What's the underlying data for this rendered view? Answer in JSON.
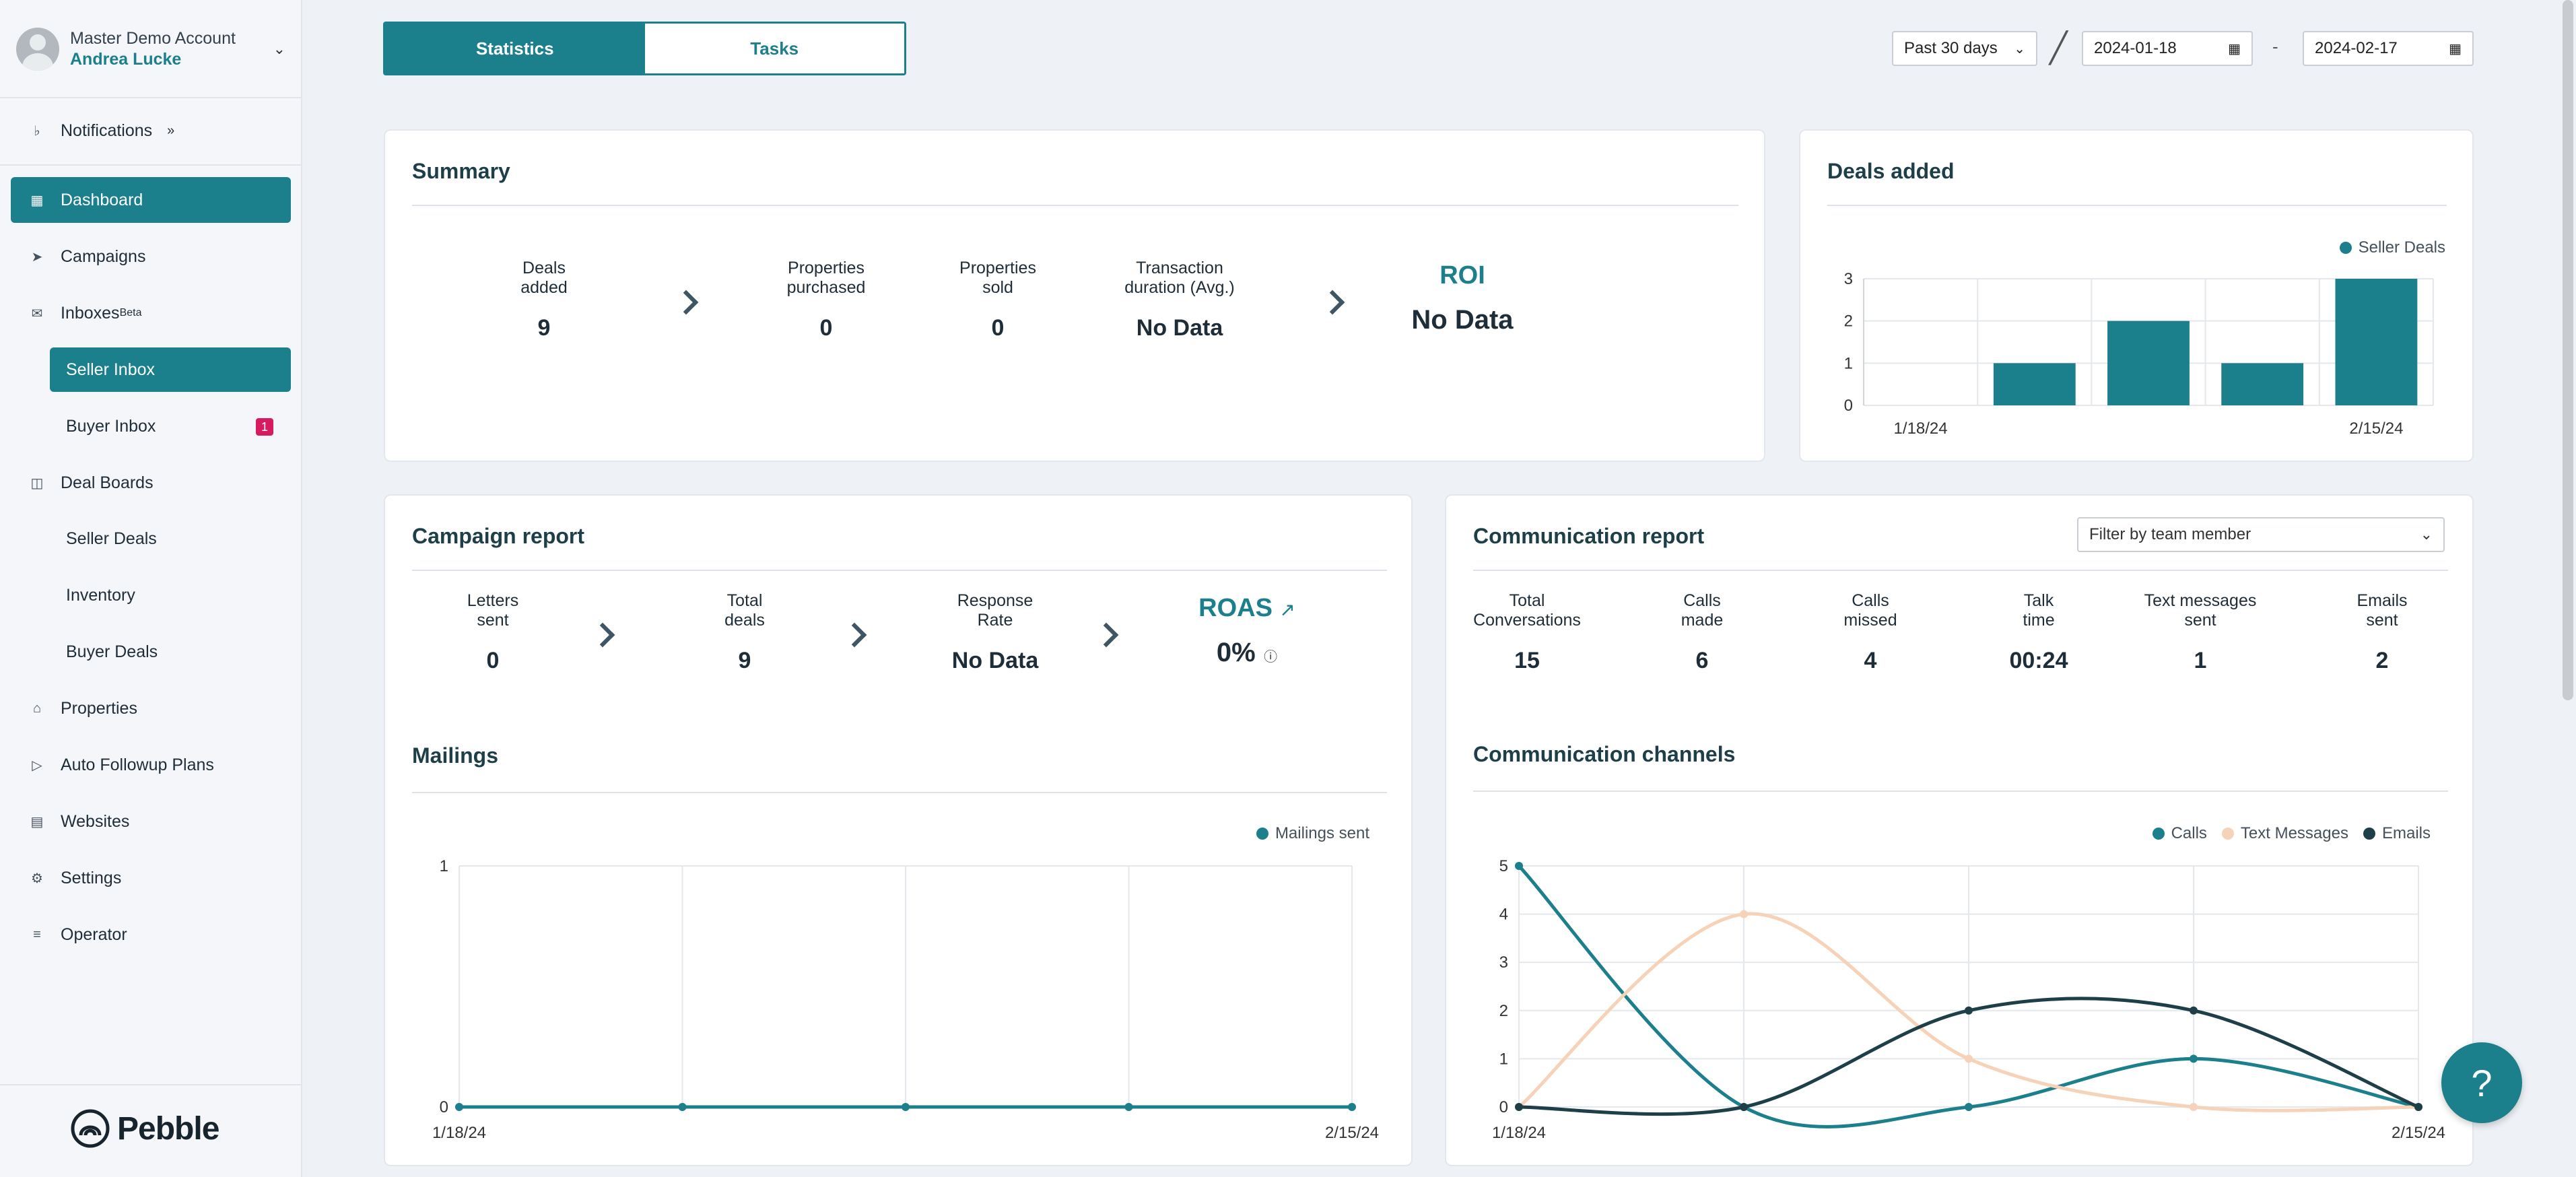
{
  "account": {
    "name": "Master Demo Account",
    "user": "Andrea Lucke"
  },
  "sidebar": {
    "notifications": "Notifications",
    "dashboard": "Dashboard",
    "campaigns": "Campaigns",
    "inboxes": "Inboxes",
    "inboxes_badge": "Beta",
    "seller_inbox": "Seller Inbox",
    "buyer_inbox": "Buyer Inbox",
    "buyer_inbox_count": "1",
    "deal_boards": "Deal Boards",
    "seller_deals": "Seller Deals",
    "inventory": "Inventory",
    "buyer_deals": "Buyer Deals",
    "properties": "Properties",
    "auto_followup": "Auto Followup Plans",
    "websites": "Websites",
    "settings": "Settings",
    "operator": "Operator"
  },
  "brand": {
    "name": "Pebble"
  },
  "tabs": {
    "statistics": "Statistics",
    "tasks": "Tasks"
  },
  "date_filter": {
    "range": "Past 30 days",
    "start": "2024-01-18",
    "end": "2024-02-17",
    "separator": "-"
  },
  "summary": {
    "title": "Summary",
    "deals_added_label": [
      "Deals",
      "added"
    ],
    "deals_added": "9",
    "props_purchased_label": [
      "Properties",
      "purchased"
    ],
    "props_purchased": "0",
    "props_sold_label": [
      "Properties",
      "sold"
    ],
    "props_sold": "0",
    "transaction_label": [
      "Transaction",
      "duration (Avg.)"
    ],
    "transaction": "No Data",
    "roi_label": "ROI",
    "roi": "No Data"
  },
  "deals_added_card": {
    "title": "Deals added"
  },
  "campaign_report": {
    "title": "Campaign report",
    "letters_label": [
      "Letters",
      "sent"
    ],
    "letters": "0",
    "total_deals_label": [
      "Total",
      "deals"
    ],
    "total_deals": "9",
    "response_label": [
      "Response",
      "Rate"
    ],
    "response": "No Data",
    "roas_label": "ROAS",
    "roas": "0%"
  },
  "mailings_card": {
    "title": "Mailings"
  },
  "communication_report": {
    "title": "Communication report",
    "filter_placeholder": "Filter by team member",
    "stats": [
      {
        "label": [
          "Total",
          "Conversations"
        ],
        "value": "15"
      },
      {
        "label": [
          "Calls",
          "made"
        ],
        "value": "6"
      },
      {
        "label": [
          "Calls",
          "missed"
        ],
        "value": "4"
      },
      {
        "label": [
          "Talk",
          "time"
        ],
        "value": "00:24"
      },
      {
        "label": [
          "Text messages",
          "sent"
        ],
        "value": "1"
      },
      {
        "label": [
          "Emails",
          "sent"
        ],
        "value": "2"
      }
    ]
  },
  "channels_card": {
    "title": "Communication channels"
  },
  "chart_data": [
    {
      "type": "bar",
      "categories": [
        "1/18/24",
        "",
        "",
        "",
        "2/15/24"
      ],
      "series": [
        {
          "name": "Seller Deals",
          "values": [
            0,
            1,
            2,
            1,
            3
          ]
        }
      ],
      "ylim": [
        0,
        3
      ],
      "yticks": [
        "0",
        "1",
        "2",
        "3"
      ],
      "xtick_labels": [
        "1/18/24",
        "2/15/24"
      ],
      "legend": "top-right",
      "color": "#1b7f8c"
    },
    {
      "type": "line",
      "categories": [
        "1/18/24",
        "",
        "",
        "",
        "2/15/24"
      ],
      "series": [
        {
          "name": "Mailings sent",
          "values": [
            0,
            0,
            0,
            0,
            0
          ]
        }
      ],
      "ylim": [
        0,
        1
      ],
      "yticks": [
        "0",
        "1"
      ],
      "xtick_labels": [
        "1/18/24",
        "2/15/24"
      ],
      "legend": "top-right",
      "color": "#1b7f8c"
    },
    {
      "type": "line",
      "categories": [
        "1/18/24",
        "",
        "",
        "",
        "2/15/24"
      ],
      "series": [
        {
          "name": "Calls",
          "values": [
            5,
            0,
            0,
            1,
            0
          ],
          "color": "#1b7f8c"
        },
        {
          "name": "Text Messages",
          "values": [
            0,
            4,
            1,
            0,
            0
          ],
          "color": "#f6d3b8"
        },
        {
          "name": "Emails",
          "values": [
            0,
            0,
            2,
            2,
            0
          ],
          "color": "#1e3f48"
        }
      ],
      "ylim": [
        0,
        5
      ],
      "yticks": [
        "0",
        "1",
        "2",
        "3",
        "4",
        "5"
      ],
      "xtick_labels": [
        "1/18/24",
        "2/15/24"
      ],
      "legend": "top-right"
    }
  ]
}
